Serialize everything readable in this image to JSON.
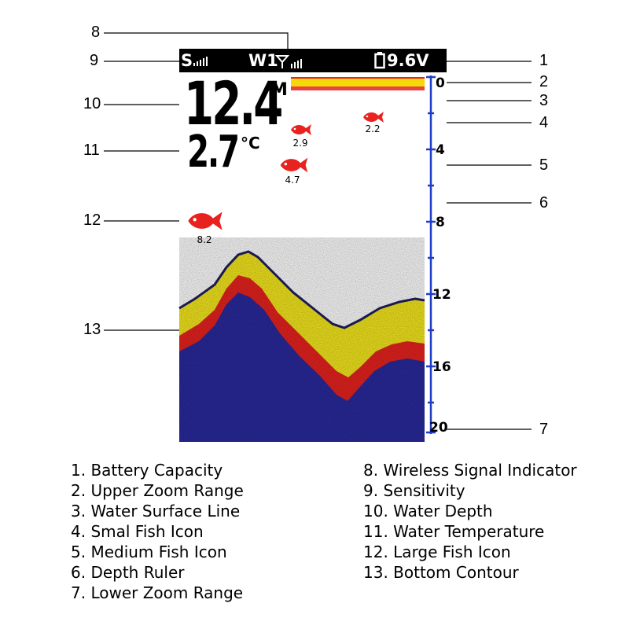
{
  "status_bar": {
    "sensitivity_label": "S",
    "wireless_channel": "W1",
    "battery_voltage": "9.6V"
  },
  "readings": {
    "water_depth": "12.4",
    "depth_unit": "M",
    "water_temperature": "2.7",
    "temperature_unit": "°C"
  },
  "fish": [
    {
      "label": "2.2",
      "size": "small"
    },
    {
      "label": "2.9",
      "size": "small"
    },
    {
      "label": "4.7",
      "size": "medium"
    },
    {
      "label": "8.2",
      "size": "large"
    }
  ],
  "depth_ruler": {
    "marks": [
      "0",
      "4",
      "8",
      "12",
      "16",
      "20"
    ]
  },
  "callouts": [
    "1",
    "2",
    "3",
    "4",
    "5",
    "6",
    "7",
    "8",
    "9",
    "10",
    "11",
    "12",
    "13"
  ],
  "legend": {
    "left": [
      "1. Battery Capacity",
      "2. Upper Zoom Range",
      "3. Water Surface Line",
      "4. Smal Fish Icon",
      "5. Medium Fish Icon",
      "6. Depth Ruler",
      "7. Lower Zoom Range"
    ],
    "right": [
      "8. Wireless Signal Indicator",
      "9. Sensitivity",
      "10. Water Depth",
      "11. Water Temperature",
      "12. Large Fish Icon",
      "13. Bottom Contour"
    ]
  },
  "colors": {
    "surface": "#f5d90a",
    "fish": "#e8231f",
    "ruler": "#1e3cc8",
    "sonar_deep": "#2a2a9e",
    "sonar_mid": "#e8231f",
    "sonar_top": "#f5e81e"
  }
}
